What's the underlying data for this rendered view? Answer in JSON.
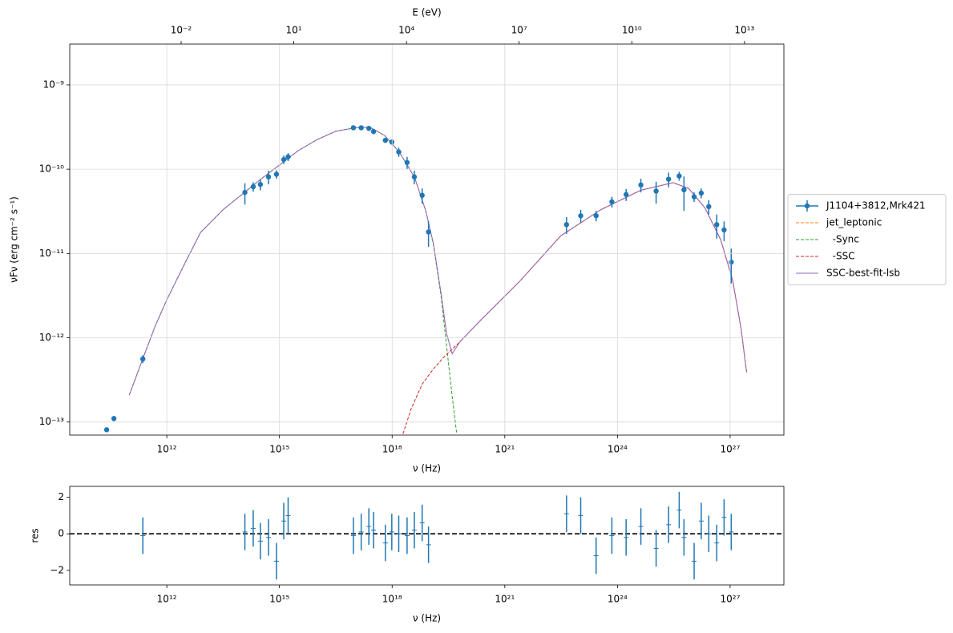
{
  "chart_data": [
    {
      "type": "line",
      "xscale": "log",
      "yscale": "log",
      "grid": true,
      "legend": "right",
      "xlabel": "ν  (Hz)",
      "ylabel": "νFν  (erg cm⁻²  s⁻¹)",
      "x2label": "E (eV)",
      "xlim": [
        2600000000.0,
        2.7e+28
      ],
      "xticks": [
        {
          "value": 1000000000000.0,
          "label": "10¹²"
        },
        {
          "value": 1000000000000000.0,
          "label": "10¹⁵"
        },
        {
          "value": 1e+18,
          "label": "10¹⁸"
        },
        {
          "value": 1e+21,
          "label": "10²¹"
        },
        {
          "value": 1e+24,
          "label": "10²⁴"
        },
        {
          "value": 1e+27,
          "label": "10²⁷"
        }
      ],
      "x2lim": [
        1.08e-05,
        112000000000000.0
      ],
      "x2ticks": [
        {
          "value": 0.01,
          "label": "10⁻²"
        },
        {
          "value": 10,
          "label": "10¹"
        },
        {
          "value": 10000,
          "label": "10⁴"
        },
        {
          "value": 10000000.0,
          "label": "10⁷"
        },
        {
          "value": 10000000000.0,
          "label": "10¹⁰"
        },
        {
          "value": 10000000000000.0,
          "label": "10¹³"
        }
      ],
      "ylim": [
        7e-14,
        3.05e-09
      ],
      "yticks": [
        {
          "value": 1e-13,
          "label": "10⁻¹³"
        },
        {
          "value": 1e-12,
          "label": "10⁻¹²"
        },
        {
          "value": 1e-11,
          "label": "10⁻¹¹"
        },
        {
          "value": 1e-10,
          "label": "10⁻¹⁰"
        },
        {
          "value": 1e-09,
          "label": "10⁻⁹"
        }
      ],
      "series": [
        {
          "name": "J1104+3812,Mrk421",
          "color": "#1f77b4",
          "style": "errorbar",
          "marker": "o",
          "x": [
            25000000000.0,
            39000000000.0,
            230000000000.0,
            120000000000000.0,
            200000000000000.0,
            310000000000000.0,
            510000000000000.0,
            830000000000000.0,
            1300000000000000.0,
            1700000000000000.0,
            9.3e+16,
            1.5e+17,
            2.4e+17,
            3.2e+17,
            6.6e+17,
            9.8e+17,
            1.5e+18,
            2.5e+18,
            3.9e+18,
            6.3e+18,
            9.3e+18,
            4.4e+22,
            1.05e+23,
            2.7e+23,
            7.1e+23,
            1.7e+24,
            4.2e+24,
            1.07e+25,
            2.3e+25,
            4.4e+25,
            5.9e+25,
            1.1e+26,
            1.7e+26,
            2.7e+26,
            4.4e+26,
            6.9e+26,
            1.07e+27
          ],
          "values": [
            8.1e-14,
            1.1e-13,
            5.6e-13,
            5.3e-11,
            6.2e-11,
            6.6e-11,
            8.1e-11,
            8.7e-11,
            1.3e-10,
            1.4e-10,
            3.1e-10,
            3.1e-10,
            3.05e-10,
            2.8e-10,
            2.2e-10,
            2.1e-10,
            1.6e-10,
            1.2e-10,
            8.1e-11,
            4.9e-11,
            1.8e-11,
            2.2e-11,
            2.8e-11,
            2.8e-11,
            4.1e-11,
            5e-11,
            6.5e-11,
            5.5e-11,
            7.6e-11,
            8.3e-11,
            5.7e-11,
            4.7e-11,
            5.2e-11,
            3.6e-11,
            2.2e-11,
            1.9e-11,
            7.9e-12
          ],
          "errors": [
            5e-15,
            8e-15,
            6e-14,
            1.5e-11,
            8e-12,
            1e-11,
            1.5e-11,
            1e-11,
            1.5e-11,
            1.5e-11,
            2e-11,
            2e-11,
            2e-11,
            2e-11,
            1.5e-11,
            1.5e-11,
            2e-11,
            2e-11,
            1.5e-11,
            1e-11,
            6e-12,
            5e-12,
            5e-12,
            4e-12,
            6e-12,
            8e-12,
            1.2e-11,
            1.6e-11,
            1.5e-11,
            1e-11,
            2.5e-11,
            6e-12,
            7e-12,
            7e-12,
            7e-12,
            5e-12,
            3.5e-12
          ]
        },
        {
          "name": "jet_leptonic",
          "color": "#ff7f0e",
          "style": "dashed",
          "x": [
            100000000000.0,
            229000000000.0,
            501000000000.0,
            1000000000000.0,
            3160000000000.0,
            7940000000000.0,
            31600000000000.0,
            100000000000000.0,
            316000000000000.0,
            1000000000000000.0,
            3160000000000000.0,
            1e+16,
            3.16e+16,
            1e+17,
            2.51e+17,
            6.31e+17,
            1.58e+18,
            3.98e+18,
            7.94e+18,
            1.26e+19,
            2e+19,
            2.82e+19,
            3.98e+19,
            6.31e+19,
            2.29e+20,
            2.63e+21,
            3.09e+22,
            3.63e+23,
            4.17e+24,
            3.02e+25,
            7.94e+25,
            2.14e+26,
            5.62e+26,
            1.17e+27,
            1.95e+27,
            2.75e+27
          ],
          "values": [
            2.09e-13,
            5.62e-13,
            1.41e-12,
            2.82e-12,
            7.94e-12,
            1.78e-11,
            3.31e-11,
            5.01e-11,
            7.59e-11,
            1.12e-10,
            1.66e-10,
            2.24e-10,
            2.82e-10,
            3.09e-10,
            3.16e-10,
            2.51e-10,
            1.58e-10,
            7.94e-11,
            3.16e-11,
            1.3e-11,
            3.39e-12,
            1.12e-12,
            6.46e-13,
            8.91e-13,
            1.62e-12,
            4.79e-12,
            1.62e-11,
            3.31e-11,
            5.62e-11,
            6.92e-11,
            5.89e-11,
            3.47e-11,
            1.45e-11,
            4.79e-12,
            1.29e-12,
            3.89e-13
          ]
        },
        {
          "name": "  -Sync",
          "color": "#2ca02c",
          "style": "dashed",
          "x": [
            100000000000.0,
            229000000000.0,
            501000000000.0,
            1000000000000.0,
            3160000000000.0,
            7940000000000.0,
            31600000000000.0,
            100000000000000.0,
            316000000000000.0,
            1000000000000000.0,
            3160000000000000.0,
            1e+16,
            3.16e+16,
            1e+17,
            2.51e+17,
            6.31e+17,
            1.58e+18,
            3.98e+18,
            7.94e+18,
            1.26e+19,
            2e+19,
            2.82e+19,
            3.98e+19,
            5.25e+19
          ],
          "values": [
            2.09e-13,
            5.62e-13,
            1.41e-12,
            2.82e-12,
            7.94e-12,
            1.78e-11,
            3.31e-11,
            5.01e-11,
            7.59e-11,
            1.12e-10,
            1.66e-10,
            2.24e-10,
            2.82e-10,
            3.09e-10,
            3.16e-10,
            2.51e-10,
            1.58e-10,
            7.94e-11,
            3.16e-11,
            1.26e-11,
            3.16e-12,
            7.94e-13,
            2e-13,
            7.24e-14
          ]
        },
        {
          "name": "  -SSC",
          "color": "#d62728",
          "style": "dashed",
          "x": [
            1.95e+18,
            3.16e+18,
            6.31e+18,
            1.26e+19,
            2.51e+19,
            6.31e+19,
            2.29e+20,
            2.63e+21,
            3.09e+22,
            3.63e+23,
            4.17e+24,
            3.02e+25,
            7.94e+25,
            2.14e+26,
            5.62e+26,
            1.17e+27,
            1.95e+27,
            2.75e+27
          ],
          "values": [
            7.24e-14,
            1.41e-13,
            2.82e-13,
            4.27e-13,
            6.03e-13,
            8.91e-13,
            1.62e-12,
            4.79e-12,
            1.62e-11,
            3.31e-11,
            5.62e-11,
            6.92e-11,
            5.89e-11,
            3.47e-11,
            1.45e-11,
            4.79e-12,
            1.29e-12,
            3.89e-13
          ]
        },
        {
          "name": "SSC-best-fit-lsb",
          "color": "#9467bd",
          "style": "solid",
          "x": [
            100000000000.0,
            229000000000.0,
            501000000000.0,
            1000000000000.0,
            3160000000000.0,
            7940000000000.0,
            31600000000000.0,
            100000000000000.0,
            316000000000000.0,
            1000000000000000.0,
            3160000000000000.0,
            1e+16,
            3.16e+16,
            1e+17,
            2.51e+17,
            6.31e+17,
            1.58e+18,
            3.98e+18,
            7.94e+18,
            1.26e+19,
            2e+19,
            2.82e+19,
            3.98e+19,
            6.31e+19,
            2.29e+20,
            2.63e+21,
            3.09e+22,
            3.63e+23,
            4.17e+24,
            3.02e+25,
            7.94e+25,
            2.14e+26,
            5.62e+26,
            1.17e+27,
            1.95e+27,
            2.75e+27
          ],
          "values": [
            2.09e-13,
            5.62e-13,
            1.41e-12,
            2.82e-12,
            7.94e-12,
            1.78e-11,
            3.31e-11,
            5.01e-11,
            7.59e-11,
            1.12e-10,
            1.66e-10,
            2.24e-10,
            2.82e-10,
            3.09e-10,
            3.16e-10,
            2.51e-10,
            1.58e-10,
            7.94e-11,
            3.16e-11,
            1.3e-11,
            3.39e-12,
            1.12e-12,
            6.46e-13,
            8.91e-13,
            1.62e-12,
            4.79e-12,
            1.62e-11,
            3.31e-11,
            5.62e-11,
            6.92e-11,
            5.89e-11,
            3.47e-11,
            1.45e-11,
            4.79e-12,
            1.29e-12,
            3.89e-13
          ]
        }
      ]
    },
    {
      "type": "scatter",
      "xscale": "log",
      "yscale": "linear",
      "grid": false,
      "xlabel": "ν  (Hz)",
      "ylabel": "res",
      "hline": 0,
      "xlim": [
        2600000000.0,
        2.7e+28
      ],
      "xticks": [
        {
          "value": 1000000000000.0,
          "label": "10¹²"
        },
        {
          "value": 1000000000000000.0,
          "label": "10¹⁵"
        },
        {
          "value": 1e+18,
          "label": "10¹⁸"
        },
        {
          "value": 1e+21,
          "label": "10²¹"
        },
        {
          "value": 1e+24,
          "label": "10²⁴"
        },
        {
          "value": 1e+27,
          "label": "10²⁷"
        }
      ],
      "ylim": [
        -2.8,
        2.6
      ],
      "yticks": [
        {
          "value": -2,
          "label": "−2"
        },
        0,
        2
      ],
      "series": [
        {
          "color": "#1f77b4",
          "style": "errorbar",
          "marker": "+",
          "x": [
            230000000000.0,
            120000000000000.0,
            200000000000000.0,
            310000000000000.0,
            510000000000000.0,
            830000000000000.0,
            1300000000000000.0,
            1700000000000000.0,
            9.3e+16,
            1.5e+17,
            2.4e+17,
            3.2e+17,
            6.6e+17,
            9.8e+17,
            1.5e+18,
            2.5e+18,
            3.9e+18,
            6.3e+18,
            9.3e+18,
            4.4e+22,
            1.05e+23,
            2.7e+23,
            7.1e+23,
            1.7e+24,
            4.2e+24,
            1.07e+25,
            2.3e+25,
            4.4e+25,
            5.9e+25,
            1.1e+26,
            1.7e+26,
            2.7e+26,
            4.4e+26,
            6.9e+26,
            1.07e+27
          ],
          "values": [
            -0.1,
            0.1,
            0.3,
            -0.4,
            -0.2,
            -1.5,
            0.7,
            1.0,
            -0.1,
            0.1,
            0.4,
            0.2,
            -0.5,
            0.1,
            0,
            -0.1,
            0.2,
            0.6,
            -0.6,
            1.1,
            1.0,
            -1.2,
            -0.1,
            -0.2,
            0.4,
            -0.8,
            0.5,
            1.3,
            -0.2,
            -1.5,
            0.7,
            0,
            -0.5,
            0.9,
            0.1
          ],
          "errors": [
            1,
            1,
            1,
            1,
            1,
            1,
            1,
            1,
            1,
            1,
            1,
            1,
            1,
            1,
            1,
            1,
            1,
            1,
            1,
            1,
            1,
            1,
            1,
            1,
            1,
            1,
            1,
            1,
            1,
            1,
            1,
            1,
            1,
            1,
            1
          ]
        }
      ]
    }
  ]
}
